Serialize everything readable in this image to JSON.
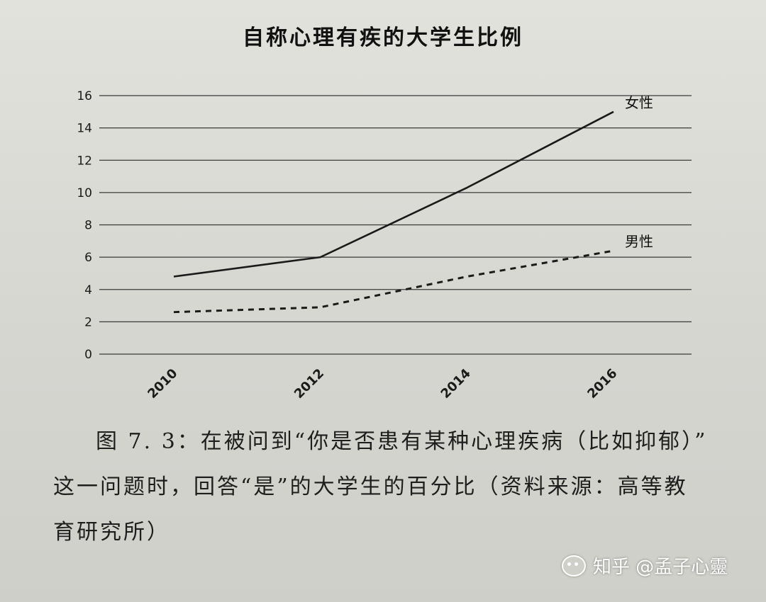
{
  "chart_data": {
    "type": "line",
    "title": "自称心理有疾的大学生比例",
    "x": [
      "2010",
      "2012",
      "2014",
      "2016"
    ],
    "series": [
      {
        "name": "女性",
        "values": [
          4.8,
          6.0,
          10.3,
          15.0
        ],
        "style": "solid",
        "color": "#1a1a1a"
      },
      {
        "name": "男性",
        "values": [
          2.6,
          2.9,
          4.8,
          6.4
        ],
        "style": "dashed",
        "color": "#1a1a1a"
      }
    ],
    "yticks": [
      "0",
      "2",
      "4",
      "6",
      "8",
      "10",
      "12",
      "14",
      "16"
    ],
    "ylim": [
      0,
      16
    ],
    "grid": true,
    "legend": "inline-labels-at-line-ends"
  },
  "caption": {
    "line1": "图 7. 3：在被问到“你是否患有某种心理疾病（比如抑郁）”",
    "line2": "这一问题时，回答“是”的大学生的百分比（资料来源：高等教",
    "line3": "育研究所）"
  },
  "watermark": {
    "text": "知乎 @孟子心靈",
    "icon": "wechat-icon"
  }
}
